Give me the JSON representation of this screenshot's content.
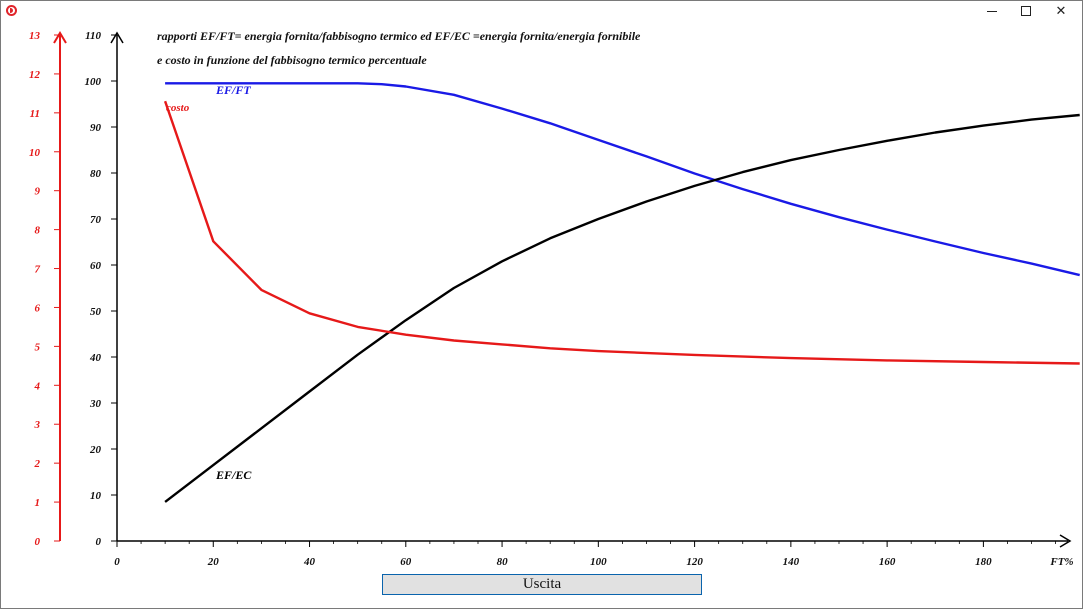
{
  "window": {
    "controls": {
      "minimize": "minimize",
      "maximize": "maximize",
      "close": "close"
    }
  },
  "title_line1": "rapporti EF/FT= energia fornita/fabbisogno termico ed EF/EC =energia fornita/energia fornibile",
  "title_line2": "e costo  in funzione del fabbisogno termico percentuale",
  "exit_button": "Uscita",
  "colors": {
    "ef_ft": "#1a1ae6",
    "ef_ec": "#000000",
    "cost": "#e61919",
    "cost_axis": "#e61919"
  },
  "chart_data": {
    "type": "line",
    "xlabel": "FT%",
    "xlim": [
      0,
      200
    ],
    "xticks": [
      0,
      20,
      40,
      60,
      80,
      100,
      120,
      140,
      160,
      180
    ],
    "ylim": [
      0,
      110
    ],
    "yticks": [
      0,
      10,
      20,
      30,
      40,
      50,
      60,
      70,
      80,
      90,
      100,
      110
    ],
    "y2lim": [
      0,
      13
    ],
    "y2ticks": [
      0,
      1,
      2,
      3,
      4,
      5,
      6,
      7,
      8,
      9,
      10,
      11,
      12,
      13
    ],
    "series": [
      {
        "name": "EF/FT",
        "axis": "left",
        "x": [
          10,
          20,
          30,
          40,
          50,
          55,
          60,
          70,
          80,
          90,
          100,
          110,
          120,
          130,
          140,
          150,
          160,
          170,
          180,
          190,
          200
        ],
        "y": [
          99.5,
          99.5,
          99.5,
          99.5,
          99.5,
          99.3,
          98.8,
          97,
          94,
          90.8,
          87.2,
          83.6,
          79.9,
          76.5,
          73.3,
          70.4,
          67.7,
          65.1,
          62.6,
          60.3,
          57.8
        ]
      },
      {
        "name": "EF/EC",
        "axis": "left",
        "x": [
          10,
          20,
          30,
          40,
          50,
          60,
          70,
          80,
          90,
          100,
          110,
          120,
          130,
          140,
          150,
          160,
          170,
          180,
          190,
          200
        ],
        "y": [
          8.5,
          16.5,
          24.5,
          32.5,
          40.5,
          48,
          55,
          60.8,
          65.8,
          70,
          73.8,
          77.2,
          80.2,
          82.8,
          85,
          87,
          88.8,
          90.3,
          91.6,
          92.6
        ]
      },
      {
        "name": "costo",
        "axis": "right",
        "x": [
          10,
          20,
          30,
          40,
          50,
          60,
          70,
          80,
          90,
          100,
          120,
          140,
          160,
          180,
          200
        ],
        "y": [
          11.3,
          7.7,
          6.45,
          5.85,
          5.5,
          5.3,
          5.15,
          5.05,
          4.95,
          4.88,
          4.78,
          4.7,
          4.64,
          4.6,
          4.56
        ]
      }
    ]
  }
}
